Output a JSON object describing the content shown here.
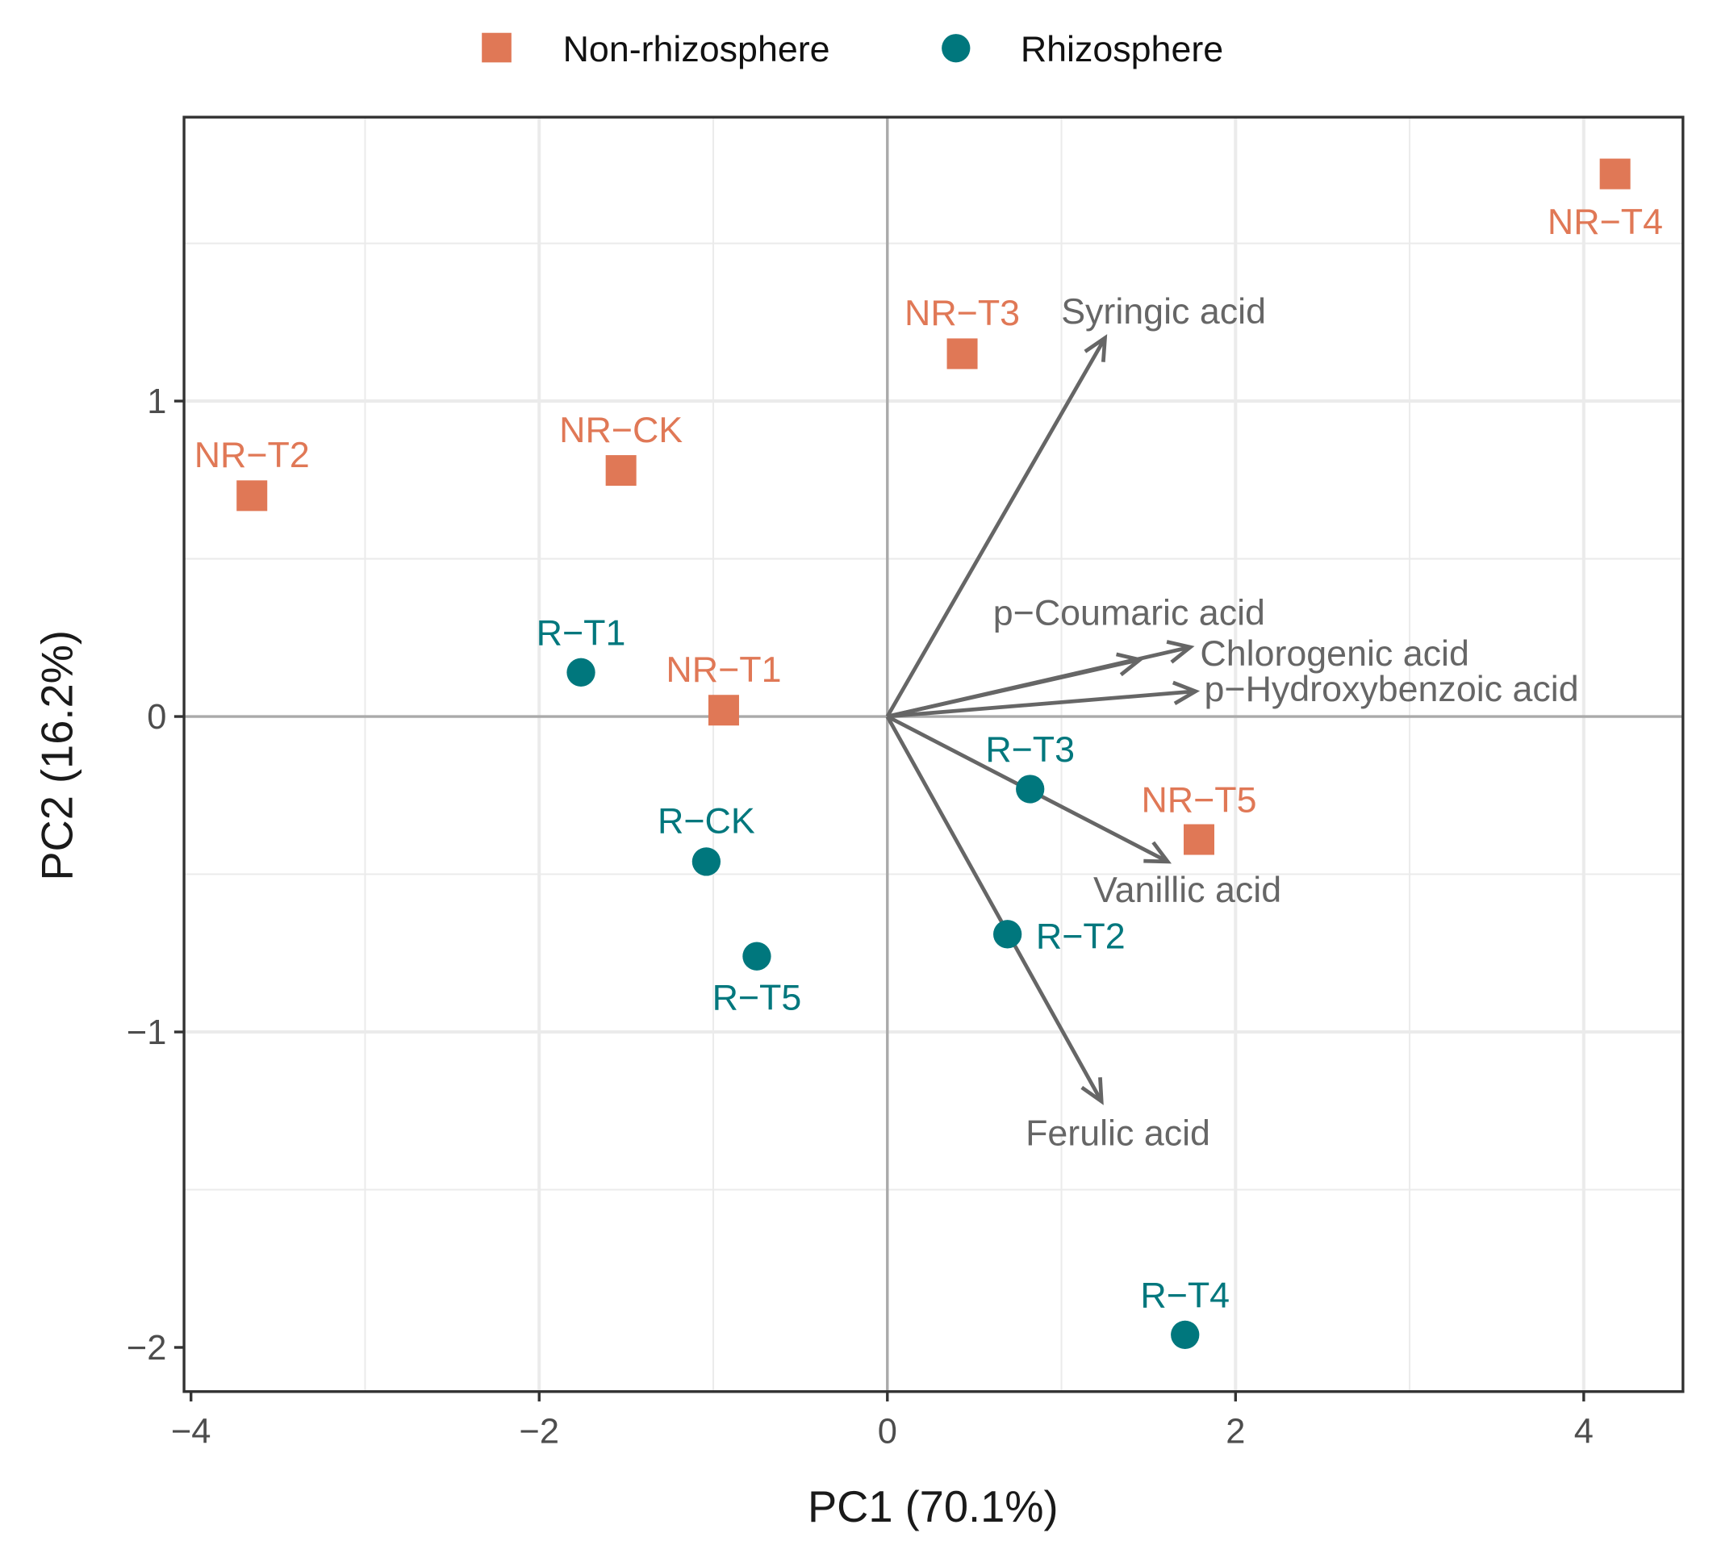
{
  "chart_data": {
    "type": "scatter",
    "title": "",
    "xlabel": "PC1 (70.1%)",
    "ylabel": "PC2 (16.2%)",
    "xlim": [
      -4.04,
      4.57
    ],
    "ylim": [
      -2.14,
      1.9
    ],
    "xticks": [
      -4,
      -2,
      0,
      2,
      4
    ],
    "yticks": [
      -2,
      -1,
      0,
      1
    ],
    "xtick_labels": [
      "−4",
      "−2",
      "0",
      "2",
      "4"
    ],
    "ytick_labels": [
      "−2",
      "−1",
      "0",
      "1"
    ],
    "grid": true,
    "legend": {
      "placement": "top",
      "entries": [
        {
          "name": "Non-rhizosphere",
          "shape": "square",
          "color": "#E07856"
        },
        {
          "name": "Rhizosphere",
          "shape": "circle",
          "color": "#00777D"
        }
      ]
    },
    "series": [
      {
        "name": "Non-rhizosphere",
        "color": "#E07856",
        "points": [
          {
            "label": "NR−T4",
            "x": 4.18,
            "y": 1.72
          },
          {
            "label": "NR−T3",
            "x": 0.43,
            "y": 1.15
          },
          {
            "label": "NR−CK",
            "x": -1.53,
            "y": 0.78
          },
          {
            "label": "NR−T2",
            "x": -3.65,
            "y": 0.7
          },
          {
            "label": "NR−T1",
            "x": -0.94,
            "y": 0.02
          },
          {
            "label": "NR−T5",
            "x": 1.79,
            "y": -0.39
          }
        ]
      },
      {
        "name": "Rhizosphere",
        "color": "#00777D",
        "points": [
          {
            "label": "R−T1",
            "x": -1.76,
            "y": 0.14
          },
          {
            "label": "R−CK",
            "x": -1.04,
            "y": -0.46
          },
          {
            "label": "R−T5",
            "x": -0.75,
            "y": -0.76
          },
          {
            "label": "R−T3",
            "x": 0.82,
            "y": -0.23
          },
          {
            "label": "R−T2",
            "x": 0.69,
            "y": -0.69
          },
          {
            "label": "R−T4",
            "x": 1.71,
            "y": -1.96
          }
        ]
      }
    ],
    "loadings": {
      "color": "#666666",
      "vectors": [
        {
          "label": "Syringic acid",
          "x": 1.25,
          "y": 1.2
        },
        {
          "label": "p−Coumaric acid",
          "x": 1.45,
          "y": 0.18
        },
        {
          "label": "Chlorogenic acid",
          "x": 1.74,
          "y": 0.22
        },
        {
          "label": "p−Hydroxybenzoic acid",
          "x": 1.77,
          "y": 0.08
        },
        {
          "label": "Vanillic acid",
          "x": 1.61,
          "y": -0.46
        },
        {
          "label": "Ferulic acid",
          "x": 1.23,
          "y": -1.22
        }
      ]
    }
  }
}
